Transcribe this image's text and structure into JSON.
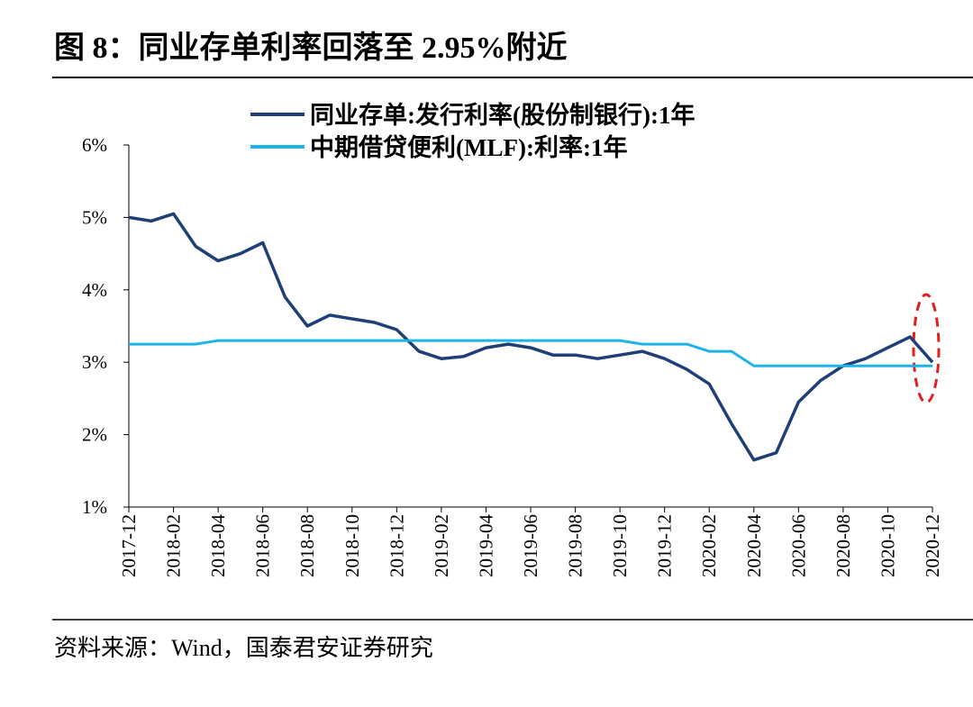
{
  "chart_data": {
    "type": "line",
    "title": "图 8：同业存单利率回落至 2.95%附近",
    "source": "资料来源：Wind，国泰君安证券研究",
    "categories": [
      "2017-12",
      null,
      "2018-02",
      null,
      "2018-04",
      null,
      "2018-06",
      null,
      "2018-08",
      null,
      "2018-10",
      null,
      "2018-12",
      null,
      "2019-02",
      null,
      "2019-04",
      null,
      "2019-06",
      null,
      "2019-08",
      null,
      "2019-10",
      null,
      "2019-12",
      null,
      "2020-02",
      null,
      "2020-04",
      null,
      "2020-06",
      null,
      "2020-08",
      null,
      "2020-10",
      null,
      "2020-12"
    ],
    "series": [
      {
        "name": "同业存单:发行利率(股份制银行):1年",
        "color": "#1f3f77",
        "values": [
          5.0,
          4.95,
          5.05,
          4.6,
          4.4,
          4.5,
          4.65,
          3.9,
          3.5,
          3.65,
          3.6,
          3.55,
          3.45,
          3.15,
          3.05,
          3.08,
          3.2,
          3.25,
          3.2,
          3.1,
          3.1,
          3.05,
          3.1,
          3.15,
          3.05,
          2.9,
          2.7,
          2.15,
          1.65,
          1.75,
          2.45,
          2.75,
          2.95,
          3.05,
          3.2,
          3.35,
          3.0
        ]
      },
      {
        "name": "中期借贷便利(MLF):利率:1年",
        "color": "#1fb4e8",
        "values": [
          3.25,
          3.25,
          3.25,
          3.25,
          3.3,
          3.3,
          3.3,
          3.3,
          3.3,
          3.3,
          3.3,
          3.3,
          3.3,
          3.3,
          3.3,
          3.3,
          3.3,
          3.3,
          3.3,
          3.3,
          3.3,
          3.3,
          3.3,
          3.25,
          3.25,
          3.25,
          3.15,
          3.15,
          2.95,
          2.95,
          2.95,
          2.95,
          2.95,
          2.95,
          2.95,
          2.95,
          2.95
        ]
      }
    ],
    "ylim": [
      1,
      6
    ],
    "yticks": [
      {
        "value": 1,
        "label": "1%"
      },
      {
        "value": 2,
        "label": "2%"
      },
      {
        "value": 3,
        "label": "3%"
      },
      {
        "value": 4,
        "label": "4%"
      },
      {
        "value": 5,
        "label": "5%"
      },
      {
        "value": 6,
        "label": "6%"
      }
    ],
    "legend": "top"
  }
}
